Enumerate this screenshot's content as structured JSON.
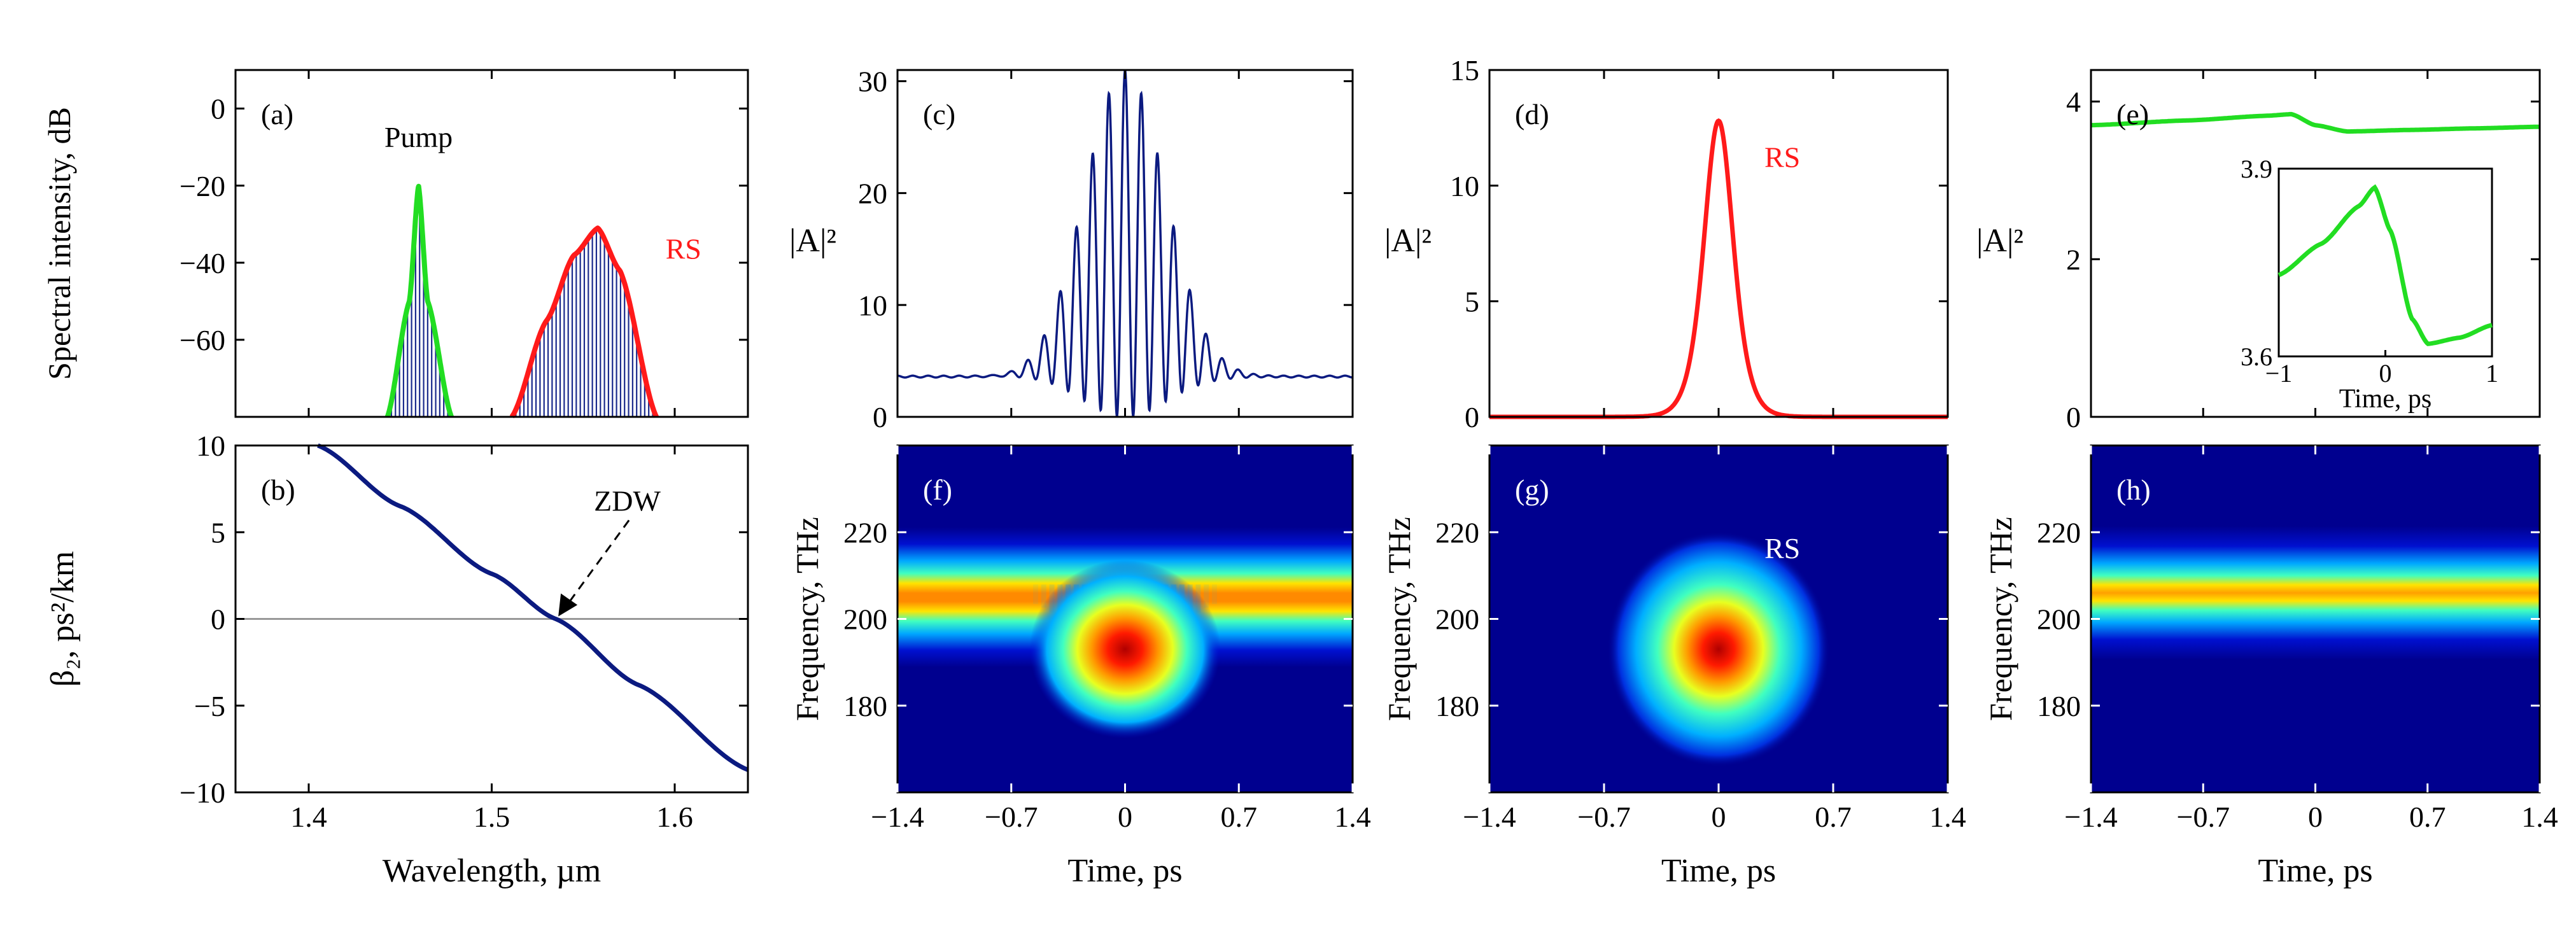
{
  "chart_data": [
    {
      "id": "a",
      "panel_label": "(a)",
      "type": "line",
      "ylabel": "Spectral intensity, dB",
      "xlim": [
        1.36,
        1.64
      ],
      "ylim": [
        -80,
        10
      ],
      "yticks": [
        0,
        -20,
        -40,
        -60
      ],
      "annotations": [
        {
          "text": "Pump",
          "x": 1.46,
          "y": -10
        },
        {
          "text": "RS",
          "x": 1.58,
          "y": -40
        }
      ],
      "series": [
        {
          "name": "Pump",
          "color": "#22dd22",
          "x": [
            1.443,
            1.455,
            1.46,
            1.465,
            1.478
          ],
          "y": [
            -80,
            -50,
            -20,
            -50,
            -80
          ]
        },
        {
          "name": "RS",
          "color": "#ff1a1a",
          "x": [
            1.511,
            1.53,
            1.545,
            1.558,
            1.57,
            1.59
          ],
          "y": [
            -80,
            -55,
            -38,
            -31,
            -42,
            -80
          ]
        }
      ],
      "fine_structure_color": "#1a2a8c"
    },
    {
      "id": "b",
      "panel_label": "(b)",
      "type": "line",
      "ylabel": "β₂, ps²/km",
      "xlabel": "Wavelength, µm",
      "xlim": [
        1.36,
        1.64
      ],
      "ylim": [
        -10,
        10
      ],
      "xticks": [
        "1.4",
        "1.5",
        "1.6"
      ],
      "xtick_values": [
        1.4,
        1.5,
        1.6
      ],
      "yticks": [
        10,
        5,
        0,
        -5,
        -10
      ],
      "annotation": {
        "text": "ZDW",
        "x": 1.535,
        "y": 0
      },
      "series": [
        {
          "name": "β₂",
          "color": "#0b1a80",
          "x": [
            1.405,
            1.45,
            1.5,
            1.535,
            1.58,
            1.64
          ],
          "y": [
            10,
            6.5,
            2.6,
            0,
            -3.8,
            -8.7
          ]
        }
      ]
    },
    {
      "id": "c",
      "panel_label": "(c)",
      "type": "line",
      "ylabel": "|A|²",
      "xlim": [
        -1.4,
        1.4
      ],
      "ylim": [
        0,
        31
      ],
      "yticks": [
        0,
        10,
        20,
        30
      ],
      "color": "#0b1a80",
      "background_level": 3.6,
      "peak_value": 31,
      "oscillation_period_ps": 0.1,
      "envelope_width_ps": 0.25
    },
    {
      "id": "d",
      "panel_label": "(d)",
      "type": "line",
      "ylabel": "|A|²",
      "xlim": [
        -1.4,
        1.4
      ],
      "ylim": [
        0,
        15
      ],
      "yticks": [
        0,
        5,
        10,
        15
      ],
      "annotation": "RS",
      "color": "#ff1a1a",
      "peak_value": 12.8,
      "peak_width_ps": 0.12
    },
    {
      "id": "e",
      "panel_label": "(e)",
      "type": "line",
      "ylabel": "|A|²",
      "xlim": [
        -1.4,
        1.4
      ],
      "ylim": [
        0,
        4.4
      ],
      "yticks": [
        0,
        2,
        4
      ],
      "color": "#22dd22",
      "x": [
        -1.4,
        -0.8,
        -0.3,
        -0.15,
        0.0,
        0.2,
        0.6,
        1.0,
        1.4
      ],
      "y": [
        3.7,
        3.76,
        3.82,
        3.84,
        3.7,
        3.62,
        3.64,
        3.66,
        3.68
      ],
      "inset": {
        "xlabel": "Time, ps",
        "xlim": [
          -1,
          1
        ],
        "ylim": [
          3.6,
          3.9
        ],
        "xticks": [
          "−1",
          "0",
          "1"
        ],
        "xtick_values": [
          -1,
          0,
          1
        ],
        "yticks": [
          "3.6",
          "3.9"
        ],
        "ytick_values": [
          3.6,
          3.9
        ],
        "x": [
          -1.0,
          -0.6,
          -0.25,
          -0.1,
          0.05,
          0.25,
          0.4,
          0.7,
          1.0
        ],
        "y": [
          3.73,
          3.78,
          3.84,
          3.87,
          3.8,
          3.66,
          3.62,
          3.63,
          3.65
        ]
      }
    },
    {
      "id": "f",
      "panel_label": "(f)",
      "type": "heatmap",
      "ylabel": "Frequency, THz",
      "xlabel": "Time, ps",
      "xlim": [
        -1.4,
        1.4
      ],
      "ylim": [
        160,
        240
      ],
      "xticks": [
        "−1.4",
        "−0.7",
        "0",
        "0.7",
        "1.4"
      ],
      "xtick_values": [
        -1.4,
        -0.7,
        0,
        0.7,
        1.4
      ],
      "yticks": [
        220,
        200,
        180
      ],
      "band_center_thz": 205,
      "spot": {
        "t": 0,
        "f": 193
      }
    },
    {
      "id": "g",
      "panel_label": "(g)",
      "type": "heatmap",
      "ylabel": "Frequency, THz",
      "xlabel": "Time, ps",
      "xlim": [
        -1.4,
        1.4
      ],
      "ylim": [
        160,
        240
      ],
      "xticks": [
        "−1.4",
        "−0.7",
        "0",
        "0.7",
        "1.4"
      ],
      "xtick_values": [
        -1.4,
        -0.7,
        0,
        0.7,
        1.4
      ],
      "yticks": [
        220,
        200,
        180
      ],
      "annotation": "RS",
      "spot": {
        "t": 0,
        "f": 193
      }
    },
    {
      "id": "h",
      "panel_label": "(h)",
      "type": "heatmap",
      "ylabel": "Frequency, THz",
      "xlabel": "Time, ps",
      "xlim": [
        -1.4,
        1.4
      ],
      "ylim": [
        160,
        240
      ],
      "xticks": [
        "−1.4",
        "−0.7",
        "0",
        "0.7",
        "1.4"
      ],
      "xtick_values": [
        -1.4,
        -0.7,
        0,
        0.7,
        1.4
      ],
      "yticks": [
        220,
        200,
        180
      ],
      "band_center_thz": 206
    }
  ]
}
